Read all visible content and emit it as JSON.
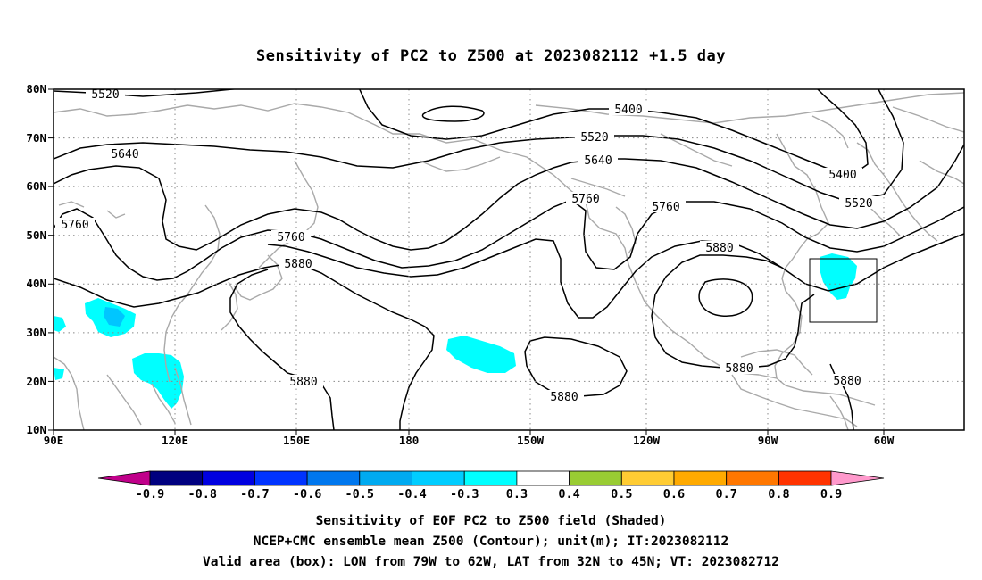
{
  "title": "Sensitivity of PC2 to Z500 at 2023082112 +1.5 day",
  "map": {
    "lon_ticks": [
      "90E",
      "120E",
      "150E",
      "180",
      "150W",
      "120W",
      "90W",
      "60W"
    ],
    "lat_ticks": [
      "80N",
      "70N",
      "60N",
      "50N",
      "40N",
      "30N",
      "20N",
      "10N"
    ],
    "contour_labels": [
      {
        "id": "l5520a",
        "text": "5520"
      },
      {
        "id": "l5400a",
        "text": "5400"
      },
      {
        "id": "l5520b",
        "text": "5520"
      },
      {
        "id": "l5640a",
        "text": "5640"
      },
      {
        "id": "l5640b",
        "text": "5640"
      },
      {
        "id": "l5400b",
        "text": "5400"
      },
      {
        "id": "l5520c",
        "text": "5520"
      },
      {
        "id": "l5760a",
        "text": "5760"
      },
      {
        "id": "l5760b",
        "text": "5760"
      },
      {
        "id": "l5760c",
        "text": "5760"
      },
      {
        "id": "l5760d",
        "text": "5760"
      },
      {
        "id": "l5880a",
        "text": "5880"
      },
      {
        "id": "l5880b",
        "text": "5880"
      },
      {
        "id": "l5880c",
        "text": "5880"
      },
      {
        "id": "l5880d",
        "text": "5880"
      },
      {
        "id": "l5880e",
        "text": "5880"
      },
      {
        "id": "l5880f",
        "text": "5880"
      }
    ],
    "valid_box": {
      "lon": [
        "79W",
        "62W"
      ],
      "lat": [
        "32N",
        "45N"
      ]
    }
  },
  "colorbar": {
    "colors": [
      "#c0008a",
      "#00007f",
      "#0000e0",
      "#0033ff",
      "#0077ee",
      "#00aaf0",
      "#00cdff",
      "#00ffff",
      "#ffffff",
      "#99cc33",
      "#ffcc33",
      "#ffaa00",
      "#ff7700",
      "#ff3300",
      "#ff0000",
      "#ff99cc"
    ],
    "ticks": [
      "-0.9",
      "-0.8",
      "-0.7",
      "-0.6",
      "-0.5",
      "-0.4",
      "-0.3",
      "0.3",
      "0.4",
      "0.5",
      "0.6",
      "0.7",
      "0.8",
      "0.9"
    ]
  },
  "caption": {
    "line1": "Sensitivity of EOF PC2 to Z500 field (Shaded)",
    "line2": "NCEP+CMC ensemble mean Z500 (Contour); unit(m); IT:2023082112",
    "line3": "Valid area (box): LON from 79W to 62W, LAT from 32N to 45N; VT: 2023082712"
  }
}
